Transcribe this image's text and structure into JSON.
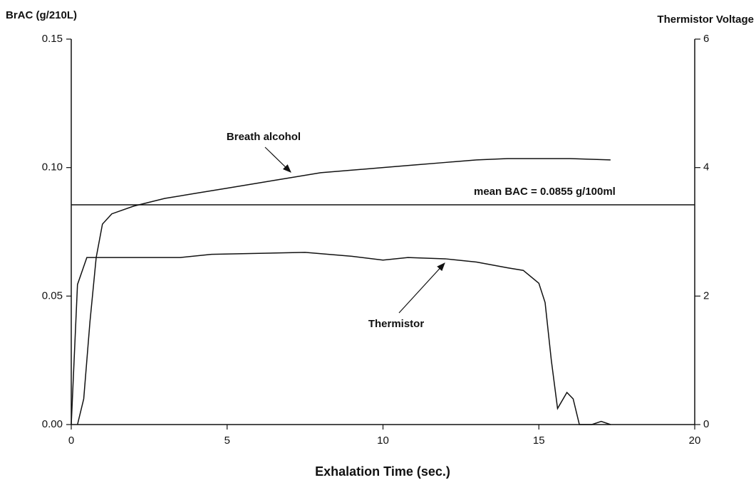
{
  "chart_data": {
    "type": "line",
    "ylabel": "BrAC (g/210L)",
    "y2label": "Thermistor Voltage",
    "xlabel": "Exhalation Time (sec.)",
    "xlim": [
      0,
      20
    ],
    "xticks": [
      0,
      5,
      10,
      15,
      20
    ],
    "ylim": [
      0,
      0.15
    ],
    "yticks": [
      {
        "value": 0,
        "label": "0.00"
      },
      0.05,
      {
        "value": 0.1,
        "label": "0.10"
      },
      0.15
    ],
    "y2lim": [
      0,
      6
    ],
    "y2ticks": [
      0,
      2,
      4,
      6
    ],
    "mean_line": {
      "value": 0.0855,
      "label": "mean BAC = 0.0855 g/100ml"
    },
    "series": [
      {
        "name": "Breath alcohol",
        "color": "#111111",
        "x": [
          0.2,
          0.4,
          0.6,
          0.8,
          1.0,
          1.3,
          2,
          3,
          4,
          5,
          6,
          7,
          8,
          9,
          10,
          11,
          12,
          13,
          14,
          15,
          16,
          17.3
        ],
        "values": [
          0,
          0.01,
          0.04,
          0.065,
          0.078,
          0.082,
          0.085,
          0.088,
          0.09,
          0.092,
          0.094,
          0.096,
          0.098,
          0.099,
          0.1,
          0.101,
          0.102,
          0.103,
          0.1035,
          0.1035,
          0.1035,
          0.103
        ]
      },
      {
        "name": "Thermistor",
        "color": "#111111",
        "axis": "y2",
        "x": [
          0,
          0.2,
          0.5,
          1,
          3.5,
          4.5,
          7.5,
          9,
          10,
          10.8,
          12,
          13,
          14,
          14.5,
          15,
          15.2,
          15.4,
          15.6,
          15.9,
          16.1,
          16.3,
          16.7,
          17,
          17.3
        ],
        "values": [
          0,
          2.18,
          2.6,
          2.6,
          2.6,
          2.65,
          2.68,
          2.62,
          2.56,
          2.6,
          2.58,
          2.53,
          2.44,
          2.4,
          2.2,
          1.9,
          1.0,
          0.25,
          0.5,
          0.4,
          0,
          0,
          0.05,
          0
        ]
      }
    ]
  }
}
